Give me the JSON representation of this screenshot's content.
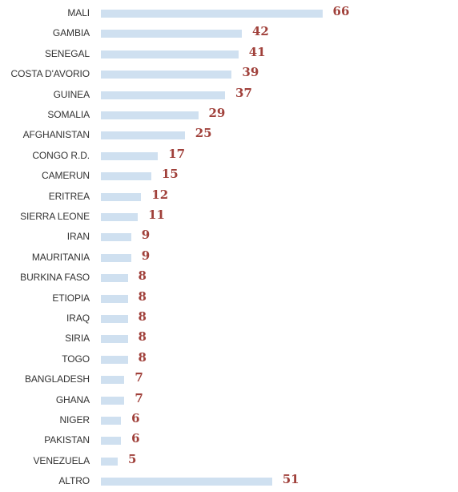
{
  "colors": {
    "bar": "#cfe0f0",
    "value_label": "#a0403a",
    "category_label": "#333333"
  },
  "chart_data": {
    "type": "bar",
    "orientation": "horizontal",
    "categories": [
      "MALI",
      "GAMBIA",
      "SENEGAL",
      "COSTA D'AVORIO",
      "GUINEA",
      "SOMALIA",
      "AFGHANISTAN",
      "CONGO R.D.",
      "CAMERUN",
      "ERITREA",
      "SIERRA LEONE",
      "IRAN",
      "MAURITANIA",
      "BURKINA FASO",
      "ETIOPIA",
      "IRAQ",
      "SIRIA",
      "TOGO",
      "BANGLADESH",
      "GHANA",
      "NIGER",
      "PAKISTAN",
      "VENEZUELA",
      "ALTRO"
    ],
    "values": [
      66,
      42,
      41,
      39,
      37,
      29,
      25,
      17,
      15,
      12,
      11,
      9,
      9,
      8,
      8,
      8,
      8,
      8,
      7,
      7,
      6,
      6,
      5,
      51
    ],
    "value_labels": [
      "66",
      "42",
      "41",
      "39",
      "37",
      "29",
      "25",
      "17",
      "15",
      "12",
      "11",
      "9",
      "9",
      "8",
      "8",
      "8",
      "8",
      "8",
      "7",
      "7",
      "6",
      "6",
      "5",
      "51"
    ],
    "grid": false,
    "legend": "none"
  }
}
